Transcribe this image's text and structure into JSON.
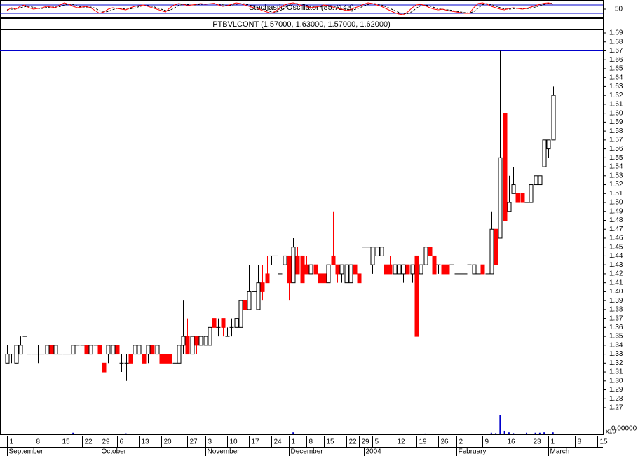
{
  "chart_data": {
    "type": "candlestick",
    "title": "PTBVLCONT (1.57000, 1.63000, 1.57000, 1.62000)",
    "up_color": "#ffffff",
    "down_color": "#ff0000",
    "line_color": "#0000cc",
    "ylim": [
      1.27,
      1.69
    ],
    "yticks": [
      1.27,
      1.28,
      1.29,
      {
        "value": 1.3,
        "label": "1.30"
      },
      1.31,
      1.32,
      1.33,
      1.34,
      1.35,
      1.36,
      1.37,
      1.38,
      1.39,
      {
        "value": 1.4,
        "label": "1.40"
      },
      1.41,
      1.42,
      1.43,
      1.44,
      1.45,
      1.46,
      1.47,
      1.48,
      1.49,
      {
        "value": 1.5,
        "label": "1.50"
      },
      1.51,
      1.52,
      1.53,
      1.54,
      1.55,
      1.56,
      1.57,
      1.58,
      1.59,
      {
        "value": 1.6,
        "label": "1.60"
      },
      1.61,
      1.62,
      1.63,
      1.64,
      1.65,
      1.66,
      1.67,
      1.68,
      1.69
    ],
    "hlines": [
      1.67,
      1.49
    ],
    "xticks": [
      {
        "value": 0,
        "label": "1"
      },
      {
        "value": 6,
        "label": "8"
      },
      {
        "value": 12,
        "label": "15"
      },
      {
        "value": 17,
        "label": "22"
      },
      {
        "value": 21,
        "label": "29"
      },
      {
        "value": 25,
        "label": "6"
      },
      {
        "value": 30,
        "label": "13"
      },
      {
        "value": 35,
        "label": "20"
      },
      {
        "value": 41,
        "label": "27"
      },
      {
        "value": 45,
        "label": "3"
      },
      {
        "value": 50,
        "label": "10"
      },
      {
        "value": 55,
        "label": "17"
      },
      {
        "value": 60,
        "label": "24"
      },
      {
        "value": 64,
        "label": "1"
      },
      {
        "value": 68,
        "label": "8"
      },
      {
        "value": 72,
        "label": "15"
      },
      {
        "value": 77,
        "label": "22"
      },
      {
        "value": 80,
        "label": "29"
      },
      {
        "value": 83,
        "label": "5"
      },
      {
        "value": 88,
        "label": "12"
      },
      {
        "value": 93,
        "label": "19"
      },
      {
        "value": 98,
        "label": "26"
      },
      {
        "value": 102,
        "label": "2"
      },
      {
        "value": 108,
        "label": "9"
      },
      {
        "value": 113,
        "label": "16"
      },
      {
        "value": 119,
        "label": "23"
      },
      {
        "value": 123,
        "label": "1"
      },
      {
        "value": 129,
        "label": "8"
      },
      {
        "value": 134,
        "label": "15"
      }
    ],
    "months": [
      {
        "value": 0,
        "label": "September"
      },
      {
        "value": 21,
        "label": "October"
      },
      {
        "value": 45,
        "label": "November"
      },
      {
        "value": 64,
        "label": "December"
      },
      {
        "value": 81,
        "label": "2004"
      },
      {
        "value": 102,
        "label": "February"
      },
      {
        "value": 123,
        "label": "March"
      }
    ],
    "ohlc": [
      [
        1.32,
        1.34,
        1.32,
        1.33
      ],
      [
        1.33,
        1.33,
        1.32,
        1.33
      ],
      [
        1.32,
        1.34,
        1.32,
        1.34
      ],
      [
        1.33,
        1.35,
        1.33,
        1.34
      ],
      [
        1.35,
        1.35,
        1.35,
        1.35
      ],
      [
        1.33,
        1.33,
        1.32,
        1.33
      ],
      [
        1.33,
        1.33,
        1.33,
        1.33
      ],
      [
        1.33,
        1.34,
        1.32,
        1.33
      ],
      [
        1.33,
        1.33,
        1.33,
        1.33
      ],
      [
        1.33,
        1.34,
        1.33,
        1.34
      ],
      [
        1.34,
        1.34,
        1.33,
        1.33
      ],
      [
        1.33,
        1.34,
        1.33,
        1.34
      ],
      [
        1.33,
        1.33,
        1.33,
        1.33
      ],
      [
        1.33,
        1.34,
        1.33,
        1.33
      ],
      [
        1.33,
        1.33,
        1.33,
        1.33
      ],
      [
        1.33,
        1.34,
        1.33,
        1.34
      ],
      [
        1.34,
        1.34,
        1.34,
        1.34
      ],
      [
        1.34,
        1.34,
        1.34,
        1.34
      ],
      [
        1.34,
        1.34,
        1.33,
        1.33
      ],
      [
        1.33,
        1.34,
        1.33,
        1.34
      ],
      [
        1.34,
        1.34,
        1.34,
        1.34
      ],
      [
        1.34,
        1.34,
        1.33,
        1.33
      ],
      [
        1.32,
        1.32,
        1.31,
        1.31
      ],
      [
        1.33,
        1.34,
        1.32,
        1.34
      ],
      [
        1.33,
        1.34,
        1.33,
        1.34
      ],
      [
        1.34,
        1.34,
        1.33,
        1.33
      ],
      [
        1.32,
        1.33,
        1.31,
        1.32
      ],
      [
        1.32,
        1.33,
        1.3,
        1.32
      ],
      [
        1.33,
        1.33,
        1.32,
        1.32
      ],
      [
        1.33,
        1.34,
        1.33,
        1.34
      ],
      [
        1.33,
        1.34,
        1.33,
        1.34
      ],
      [
        1.33,
        1.34,
        1.32,
        1.32
      ],
      [
        1.33,
        1.34,
        1.32,
        1.34
      ],
      [
        1.34,
        1.34,
        1.33,
        1.33
      ],
      [
        1.33,
        1.34,
        1.33,
        1.34
      ],
      [
        1.33,
        1.33,
        1.32,
        1.32
      ],
      [
        1.33,
        1.33,
        1.32,
        1.32
      ],
      [
        1.33,
        1.33,
        1.32,
        1.32
      ],
      [
        1.32,
        1.33,
        1.32,
        1.32
      ],
      [
        1.32,
        1.34,
        1.32,
        1.34
      ],
      [
        1.34,
        1.39,
        1.33,
        1.35
      ],
      [
        1.35,
        1.37,
        1.33,
        1.33
      ],
      [
        1.33,
        1.35,
        1.33,
        1.35
      ],
      [
        1.35,
        1.35,
        1.33,
        1.34
      ],
      [
        1.34,
        1.35,
        1.34,
        1.35
      ],
      [
        1.34,
        1.35,
        1.34,
        1.35
      ],
      [
        1.34,
        1.36,
        1.34,
        1.36
      ],
      [
        1.37,
        1.37,
        1.36,
        1.36
      ],
      [
        1.36,
        1.37,
        1.35,
        1.36
      ],
      [
        1.37,
        1.37,
        1.35,
        1.36
      ],
      [
        1.35,
        1.36,
        1.35,
        1.35
      ],
      [
        1.36,
        1.37,
        1.35,
        1.36
      ],
      [
        1.36,
        1.37,
        1.36,
        1.37
      ],
      [
        1.36,
        1.39,
        1.36,
        1.39
      ],
      [
        1.39,
        1.39,
        1.38,
        1.38
      ],
      [
        1.38,
        1.43,
        1.38,
        1.4
      ],
      [
        1.4,
        1.4,
        1.4,
        1.4
      ],
      [
        1.38,
        1.43,
        1.38,
        1.41
      ],
      [
        1.41,
        1.43,
        1.39,
        1.4
      ],
      [
        1.42,
        1.44,
        1.41,
        1.41
      ],
      [
        1.44,
        1.44,
        1.43,
        1.44
      ],
      [
        1.44,
        1.44,
        1.44,
        1.44
      ],
      [
        1.42,
        1.42,
        1.42,
        1.42
      ],
      [
        1.43,
        1.44,
        1.43,
        1.44
      ],
      [
        1.44,
        1.44,
        1.39,
        1.41
      ],
      [
        1.41,
        1.46,
        1.41,
        1.45
      ],
      [
        1.44,
        1.45,
        1.42,
        1.42
      ],
      [
        1.44,
        1.44,
        1.41,
        1.41
      ],
      [
        1.43,
        1.44,
        1.42,
        1.42
      ],
      [
        1.42,
        1.43,
        1.42,
        1.43
      ],
      [
        1.43,
        1.43,
        1.42,
        1.42
      ],
      [
        1.42,
        1.42,
        1.41,
        1.41
      ],
      [
        1.42,
        1.42,
        1.41,
        1.41
      ],
      [
        1.41,
        1.43,
        1.41,
        1.43
      ],
      [
        1.44,
        1.49,
        1.43,
        1.43
      ],
      [
        1.43,
        1.43,
        1.41,
        1.42
      ],
      [
        1.42,
        1.43,
        1.41,
        1.43
      ],
      [
        1.41,
        1.43,
        1.41,
        1.43
      ],
      [
        1.41,
        1.43,
        1.41,
        1.43
      ],
      [
        1.43,
        1.43,
        1.42,
        1.42
      ],
      [
        1.42,
        1.42,
        1.41,
        1.41
      ],
      [
        1.45,
        1.45,
        1.45,
        1.45
      ],
      [
        1.45,
        1.45,
        1.45,
        1.45
      ],
      [
        1.43,
        1.45,
        1.42,
        1.45
      ],
      [
        1.44,
        1.45,
        1.44,
        1.45
      ],
      [
        1.44,
        1.45,
        1.44,
        1.45
      ],
      [
        1.43,
        1.44,
        1.42,
        1.42
      ],
      [
        1.43,
        1.44,
        1.42,
        1.42
      ],
      [
        1.42,
        1.43,
        1.42,
        1.43
      ],
      [
        1.42,
        1.43,
        1.42,
        1.43
      ],
      [
        1.42,
        1.43,
        1.41,
        1.43
      ],
      [
        1.43,
        1.43,
        1.42,
        1.42
      ],
      [
        1.42,
        1.43,
        1.41,
        1.43
      ],
      [
        1.44,
        1.44,
        1.35,
        1.35
      ],
      [
        1.42,
        1.43,
        1.41,
        1.43
      ],
      [
        1.43,
        1.46,
        1.42,
        1.45
      ],
      [
        1.45,
        1.45,
        1.44,
        1.44
      ],
      [
        1.44,
        1.44,
        1.42,
        1.42
      ],
      [
        1.43,
        1.43,
        1.42,
        1.43
      ],
      [
        1.43,
        1.43,
        1.42,
        1.42
      ],
      [
        1.43,
        1.43,
        1.42,
        1.42
      ],
      [
        1.43,
        1.43,
        1.43,
        1.43
      ],
      [
        1.42,
        1.42,
        1.42,
        1.42
      ],
      [
        1.42,
        1.42,
        1.42,
        1.42
      ],
      [
        1.42,
        1.42,
        1.42,
        1.42
      ],
      [
        1.43,
        1.43,
        1.43,
        1.43
      ],
      [
        1.42,
        1.43,
        1.42,
        1.43
      ],
      [
        1.42,
        1.42,
        1.42,
        1.42
      ],
      [
        1.43,
        1.43,
        1.42,
        1.42
      ],
      [
        1.42,
        1.42,
        1.42,
        1.42
      ],
      [
        1.42,
        1.49,
        1.42,
        1.47
      ],
      [
        1.47,
        1.47,
        1.43,
        1.43
      ],
      [
        1.46,
        1.67,
        1.46,
        1.55
      ],
      [
        1.6,
        1.6,
        1.48,
        1.48
      ],
      [
        1.49,
        1.53,
        1.49,
        1.5
      ],
      [
        1.51,
        1.54,
        1.51,
        1.52
      ],
      [
        1.51,
        1.51,
        1.5,
        1.5
      ],
      [
        1.51,
        1.51,
        1.5,
        1.5
      ],
      [
        1.5,
        1.51,
        1.47,
        1.5
      ],
      [
        1.5,
        1.52,
        1.5,
        1.52
      ],
      [
        1.52,
        1.53,
        1.52,
        1.53
      ],
      [
        1.52,
        1.53,
        1.52,
        1.53
      ],
      [
        1.54,
        1.57,
        1.54,
        1.57
      ],
      [
        1.56,
        1.57,
        1.55,
        1.57
      ],
      [
        1.57,
        1.63,
        1.57,
        1.62
      ]
    ],
    "indicator": {
      "title": "Stochastic Oscillator (85.7143)",
      "ylim": [
        0,
        100
      ],
      "yticks": [
        50
      ],
      "levels": [
        20,
        80
      ],
      "k_color": "#ff0000",
      "d_color": "#000000",
      "k": [
        40,
        60,
        50,
        70,
        80,
        60,
        50,
        55,
        60,
        70,
        65,
        60,
        80,
        95,
        85,
        70,
        60,
        65,
        70,
        60,
        40,
        20,
        30,
        50,
        60,
        55,
        50,
        45,
        60,
        70,
        75,
        80,
        70,
        60,
        50,
        40,
        30,
        60,
        80,
        90,
        85,
        75,
        80,
        85,
        90,
        85,
        88,
        92,
        80,
        70,
        75,
        85,
        95,
        90,
        80,
        70,
        60,
        55,
        40,
        30,
        20,
        35,
        60,
        80,
        90,
        95,
        85,
        75,
        70,
        60,
        65,
        70,
        80,
        75,
        65,
        55,
        50,
        40,
        45,
        60,
        70,
        85,
        95,
        90,
        80,
        70,
        55,
        40,
        25,
        15,
        10,
        30,
        60,
        80,
        85,
        75,
        60,
        50,
        45,
        50,
        40,
        35,
        30,
        25,
        20,
        20,
        60,
        90,
        95,
        85,
        70,
        60,
        50,
        45,
        55,
        60,
        55,
        50,
        55,
        65,
        75,
        85,
        92,
        95,
        85.7143
      ],
      "d": [
        45,
        50,
        50,
        60,
        67,
        70,
        63,
        55,
        55,
        62,
        65,
        65,
        68,
        78,
        87,
        83,
        72,
        65,
        65,
        65,
        57,
        40,
        30,
        33,
        47,
        55,
        55,
        50,
        52,
        58,
        68,
        75,
        75,
        70,
        60,
        50,
        40,
        43,
        57,
        77,
        85,
        83,
        80,
        80,
        85,
        87,
        88,
        88,
        87,
        81,
        75,
        77,
        85,
        90,
        88,
        80,
        70,
        62,
        52,
        42,
        30,
        28,
        38,
        58,
        77,
        88,
        90,
        85,
        77,
        68,
        65,
        65,
        72,
        75,
        73,
        65,
        57,
        48,
        45,
        48,
        58,
        72,
        83,
        90,
        88,
        80,
        68,
        55,
        40,
        27,
        17,
        18,
        33,
        57,
        75,
        80,
        73,
        62,
        52,
        48,
        45,
        42,
        35,
        30,
        25,
        22,
        33,
        57,
        82,
        90,
        83,
        72,
        60,
        52,
        50,
        53,
        57,
        55,
        53,
        57,
        65,
        75,
        84,
        91,
        92
      ]
    },
    "volume": {
      "scale_label": "x10",
      "tick_label": "0.00000",
      "ylim": [
        0,
        100
      ],
      "color": "#0000cc",
      "values": [
        2,
        1,
        1,
        1,
        1,
        1,
        1,
        1,
        1,
        1,
        1,
        1,
        1,
        1,
        1,
        8,
        1,
        1,
        1,
        1,
        1,
        1,
        1,
        1,
        1,
        1,
        1,
        5,
        1,
        1,
        1,
        1,
        1,
        1,
        1,
        1,
        1,
        1,
        1,
        1,
        2,
        1,
        1,
        1,
        1,
        1,
        1,
        1,
        1,
        1,
        1,
        1,
        1,
        1,
        1,
        1,
        1,
        1,
        1,
        1,
        1,
        1,
        1,
        1,
        1,
        10,
        1,
        1,
        1,
        1,
        1,
        1,
        1,
        1,
        3,
        1,
        1,
        1,
        1,
        1,
        1,
        1,
        1,
        1,
        1,
        1,
        1,
        1,
        1,
        1,
        1,
        1,
        1,
        3,
        1,
        4,
        1,
        1,
        1,
        1,
        1,
        1,
        1,
        1,
        1,
        1,
        1,
        1,
        1,
        1,
        8,
        6,
        100,
        18,
        10,
        6,
        3,
        3,
        8,
        3,
        8,
        8,
        10,
        3,
        10
      ]
    }
  }
}
